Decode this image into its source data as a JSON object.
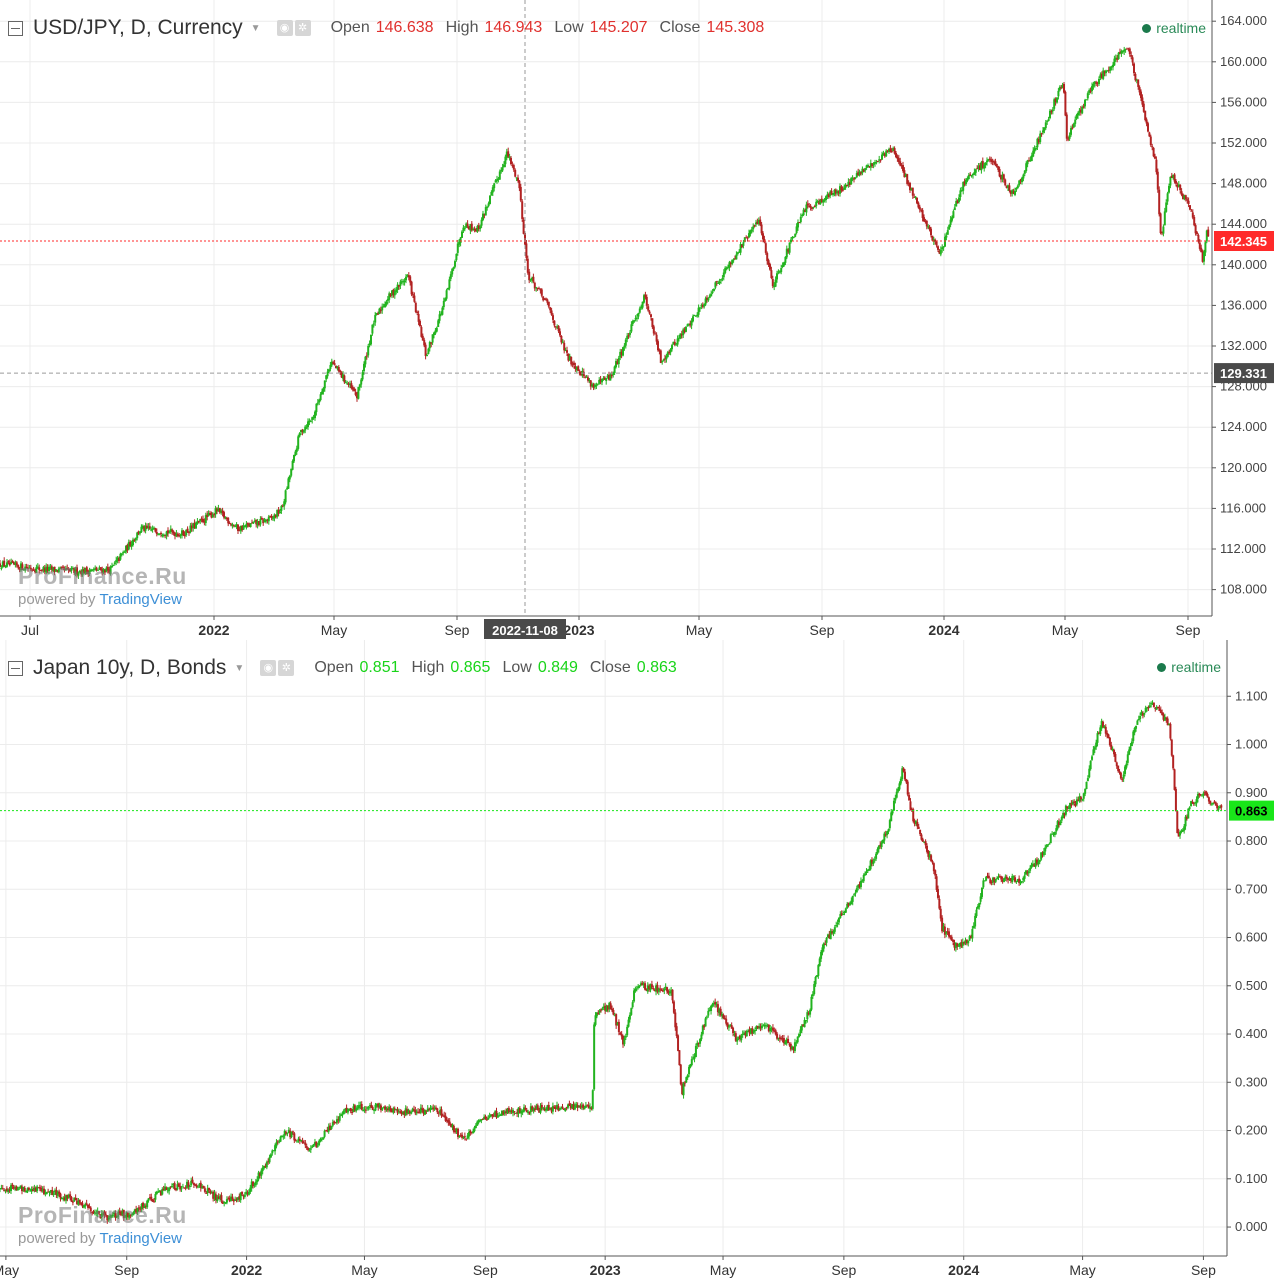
{
  "chart_data": [
    {
      "type": "candlestick",
      "symbol": "USD/JPY, D, Currency",
      "legend": {
        "open_label": "Open",
        "open": "146.638",
        "high_label": "High",
        "high": "146.943",
        "low_label": "Low",
        "low": "145.207",
        "close_label": "Close",
        "close": "145.308"
      },
      "realtime_label": "realtime",
      "watermark": "ProFinance.Ru",
      "powered_prefix": "powered by",
      "powered_brand": "TradingView",
      "y_ticks": [
        "164.000",
        "160.000",
        "156.000",
        "152.000",
        "148.000",
        "144.000",
        "140.000",
        "136.000",
        "132.000",
        "128.000",
        "124.000",
        "120.000",
        "116.000",
        "112.000",
        "108.000"
      ],
      "ylim": [
        105.4,
        165.3
      ],
      "x_ticks": [
        {
          "label": "Jul",
          "date": "2021-07-01"
        },
        {
          "label": "2022",
          "date": "2022-01-01"
        },
        {
          "label": "May",
          "date": "2022-05-01"
        },
        {
          "label": "Sep",
          "date": "2022-09-01"
        },
        {
          "label": "2023",
          "date": "2023-01-01"
        },
        {
          "label": "May",
          "date": "2023-05-01"
        },
        {
          "label": "Sep",
          "date": "2023-09-01"
        },
        {
          "label": "2024",
          "date": "2024-01-01"
        },
        {
          "label": "May",
          "date": "2024-05-01"
        },
        {
          "label": "Sep",
          "date": "2024-09-01"
        }
      ],
      "xlim": [
        "2021-06-01",
        "2024-09-25"
      ],
      "crosshair": {
        "date": "2022-11-08",
        "date_label": "2022-11-08",
        "price": 129.331,
        "price_label": "129.331"
      },
      "last_price": {
        "value": 142.345,
        "label": "142.345"
      },
      "price_path": [
        [
          "2021-06-01",
          110.5
        ],
        [
          "2021-07-15",
          110.0
        ],
        [
          "2021-08-15",
          109.8
        ],
        [
          "2021-09-20",
          110.0
        ],
        [
          "2021-10-20",
          114.0
        ],
        [
          "2021-12-01",
          113.5
        ],
        [
          "2022-01-04",
          115.8
        ],
        [
          "2022-01-25",
          114.0
        ],
        [
          "2022-02-28",
          115.0
        ],
        [
          "2022-03-10",
          116.0
        ],
        [
          "2022-03-28",
          123.5
        ],
        [
          "2022-04-10",
          125.0
        ],
        [
          "2022-04-28",
          130.5
        ],
        [
          "2022-05-24",
          127.0
        ],
        [
          "2022-06-10",
          134.5
        ],
        [
          "2022-06-22",
          136.5
        ],
        [
          "2022-07-14",
          139.0
        ],
        [
          "2022-08-01",
          131.0
        ],
        [
          "2022-08-20",
          136.5
        ],
        [
          "2022-09-07",
          144.0
        ],
        [
          "2022-09-22",
          143.5
        ],
        [
          "2022-10-21",
          151.0
        ],
        [
          "2022-11-02",
          148.0
        ],
        [
          "2022-11-11",
          139.0
        ],
        [
          "2022-12-01",
          136.0
        ],
        [
          "2022-12-20",
          131.0
        ],
        [
          "2023-01-16",
          128.0
        ],
        [
          "2023-02-02",
          129.0
        ],
        [
          "2023-03-08",
          137.0
        ],
        [
          "2023-03-24",
          130.5
        ],
        [
          "2023-04-20",
          134.0
        ],
        [
          "2023-05-31",
          140.0
        ],
        [
          "2023-06-30",
          144.5
        ],
        [
          "2023-07-14",
          138.0
        ],
        [
          "2023-08-15",
          145.5
        ],
        [
          "2023-09-20",
          147.5
        ],
        [
          "2023-11-10",
          151.5
        ],
        [
          "2023-12-01",
          147.0
        ],
        [
          "2023-12-28",
          141.0
        ],
        [
          "2024-01-20",
          148.0
        ],
        [
          "2024-02-15",
          150.5
        ],
        [
          "2024-03-10",
          147.0
        ],
        [
          "2024-04-01",
          151.5
        ],
        [
          "2024-04-29",
          158.0
        ],
        [
          "2024-05-03",
          152.5
        ],
        [
          "2024-05-28",
          157.5
        ],
        [
          "2024-06-26",
          161.0
        ],
        [
          "2024-07-03",
          161.5
        ],
        [
          "2024-07-31",
          150.0
        ],
        [
          "2024-08-05",
          142.5
        ],
        [
          "2024-08-15",
          149.0
        ],
        [
          "2024-09-03",
          145.5
        ],
        [
          "2024-09-16",
          140.5
        ],
        [
          "2024-09-20",
          143.5
        ],
        [
          "2024-09-22",
          142.345
        ]
      ],
      "up_color": "#22b31f",
      "down_color": "#b22222",
      "last_price_color": "#ff2a2a"
    },
    {
      "type": "candlestick",
      "symbol": "Japan 10y, D, Bonds",
      "legend": {
        "open_label": "Open",
        "open": "0.851",
        "high_label": "High",
        "high": "0.865",
        "low_label": "Low",
        "low": "0.849",
        "close_label": "Close",
        "close": "0.863"
      },
      "realtime_label": "realtime",
      "watermark": "ProFinance.Ru",
      "powered_prefix": "powered by",
      "powered_brand": "TradingView",
      "y_ticks": [
        "1.100",
        "1.000",
        "0.900",
        "0.800",
        "0.700",
        "0.600",
        "0.500",
        "0.400",
        "0.300",
        "0.200",
        "0.100",
        "0.000"
      ],
      "ylim": [
        -0.06,
        1.2
      ],
      "x_ticks": [
        {
          "label": "May",
          "date": "2021-05-01"
        },
        {
          "label": "Sep",
          "date": "2021-09-01"
        },
        {
          "label": "2022",
          "date": "2022-01-01"
        },
        {
          "label": "May",
          "date": "2022-05-01"
        },
        {
          "label": "Sep",
          "date": "2022-09-01"
        },
        {
          "label": "2023",
          "date": "2023-01-01"
        },
        {
          "label": "May",
          "date": "2023-05-01"
        },
        {
          "label": "Sep",
          "date": "2023-09-01"
        },
        {
          "label": "2024",
          "date": "2024-01-01"
        },
        {
          "label": "May",
          "date": "2024-05-01"
        },
        {
          "label": "Sep",
          "date": "2024-09-01"
        }
      ],
      "xlim": [
        "2021-04-25",
        "2024-09-25"
      ],
      "last_price": {
        "value": 0.863,
        "label": "0.863"
      },
      "price_path": [
        [
          "2021-04-25",
          0.08
        ],
        [
          "2021-06-01",
          0.08
        ],
        [
          "2021-07-05",
          0.06
        ],
        [
          "2021-08-10",
          0.02
        ],
        [
          "2021-09-10",
          0.03
        ],
        [
          "2021-10-10",
          0.08
        ],
        [
          "2021-11-10",
          0.09
        ],
        [
          "2021-12-10",
          0.05
        ],
        [
          "2022-01-01",
          0.07
        ],
        [
          "2022-02-10",
          0.2
        ],
        [
          "2022-03-08",
          0.16
        ],
        [
          "2022-04-10",
          0.24
        ],
        [
          "2022-05-10",
          0.25
        ],
        [
          "2022-06-10",
          0.24
        ],
        [
          "2022-07-15",
          0.24
        ],
        [
          "2022-08-10",
          0.18
        ],
        [
          "2022-08-25",
          0.22
        ],
        [
          "2022-09-20",
          0.24
        ],
        [
          "2022-12-19",
          0.25
        ],
        [
          "2022-12-21",
          0.44
        ],
        [
          "2023-01-06",
          0.46
        ],
        [
          "2023-01-20",
          0.38
        ],
        [
          "2023-02-01",
          0.5
        ],
        [
          "2023-03-10",
          0.49
        ],
        [
          "2023-03-20",
          0.28
        ],
        [
          "2023-04-20",
          0.47
        ],
        [
          "2023-05-15",
          0.39
        ],
        [
          "2023-06-10",
          0.42
        ],
        [
          "2023-07-12",
          0.37
        ],
        [
          "2023-07-28",
          0.45
        ],
        [
          "2023-08-10",
          0.58
        ],
        [
          "2023-09-20",
          0.72
        ],
        [
          "2023-10-15",
          0.82
        ],
        [
          "2023-10-31",
          0.95
        ],
        [
          "2023-11-10",
          0.85
        ],
        [
          "2023-12-01",
          0.75
        ],
        [
          "2023-12-10",
          0.62
        ],
        [
          "2023-12-25",
          0.58
        ],
        [
          "2024-01-08",
          0.6
        ],
        [
          "2024-01-22",
          0.72
        ],
        [
          "2024-02-28",
          0.72
        ],
        [
          "2024-03-20",
          0.77
        ],
        [
          "2024-04-15",
          0.87
        ],
        [
          "2024-05-01",
          0.89
        ],
        [
          "2024-05-20",
          1.05
        ],
        [
          "2024-06-10",
          0.93
        ],
        [
          "2024-06-25",
          1.05
        ],
        [
          "2024-07-10",
          1.09
        ],
        [
          "2024-07-28",
          1.04
        ],
        [
          "2024-08-01",
          0.95
        ],
        [
          "2024-08-06",
          0.8
        ],
        [
          "2024-08-20",
          0.88
        ],
        [
          "2024-09-01",
          0.9
        ],
        [
          "2024-09-10",
          0.88
        ],
        [
          "2024-09-20",
          0.863
        ]
      ],
      "up_color": "#22b31f",
      "down_color": "#b22222",
      "last_price_color": "#19e619"
    }
  ]
}
